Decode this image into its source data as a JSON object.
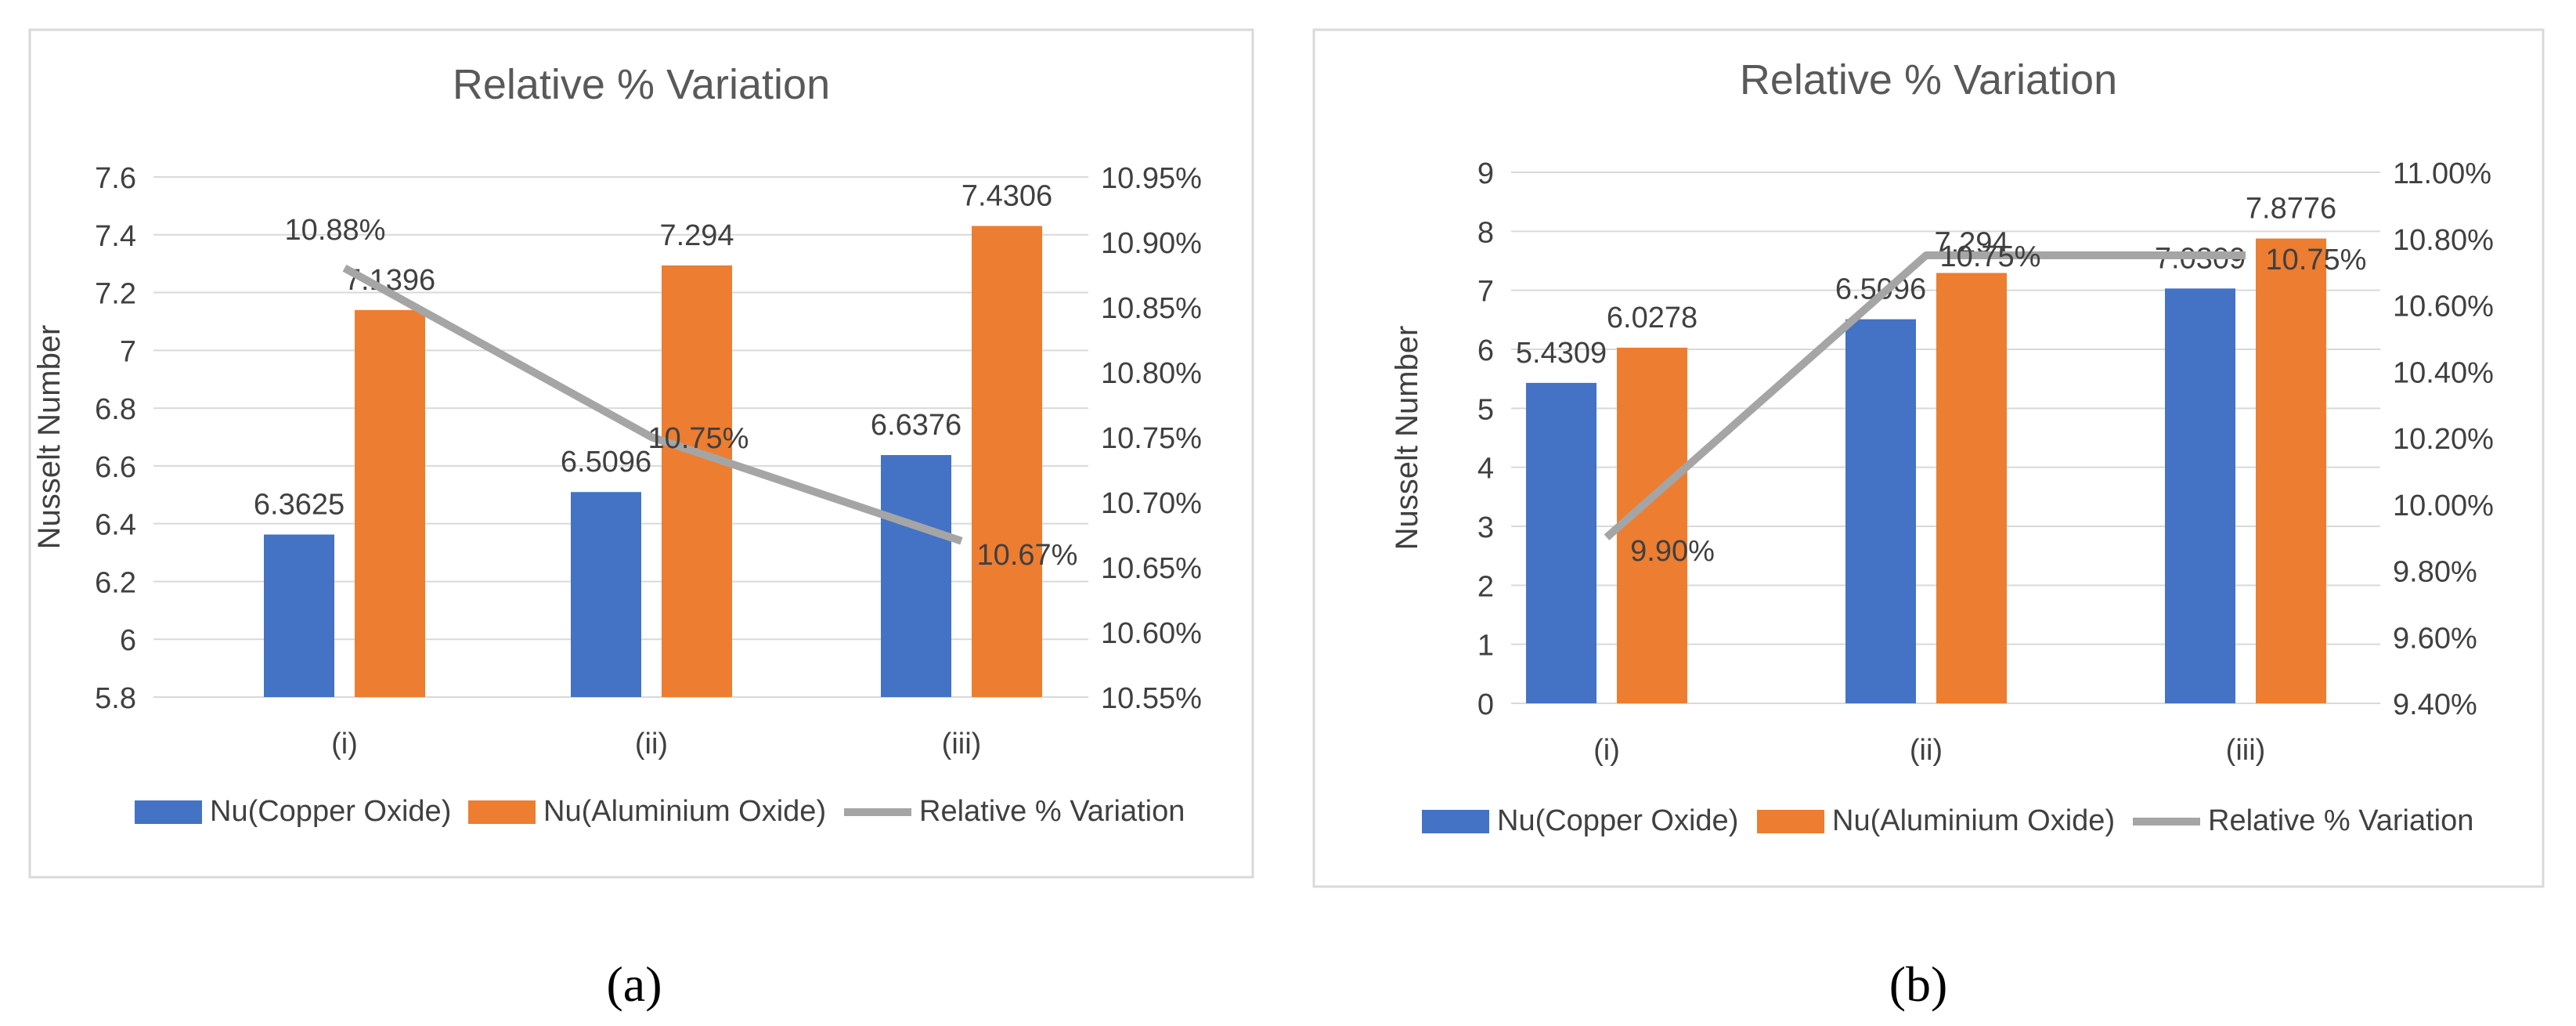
{
  "chart_data": [
    {
      "type": "bar",
      "panel": "a",
      "title": "Relative % Variation",
      "ylabel": "Nusselt Number",
      "categories": [
        "(i)",
        "(ii)",
        "(iii)"
      ],
      "series": [
        {
          "name": "Nu(Copper Oxide)",
          "values": [
            6.3625,
            6.5096,
            6.6376
          ],
          "labels": [
            "6.3625",
            "6.5096",
            "6.6376"
          ],
          "color": "#4472C4"
        },
        {
          "name": "Nu(Aluminium Oxide)",
          "values": [
            7.1396,
            7.294,
            7.4306
          ],
          "labels": [
            "7.1396",
            "7.294",
            "7.4306"
          ],
          "color": "#ED7D31"
        }
      ],
      "line_series": {
        "name": "Relative % Variation",
        "values": [
          10.88,
          10.75,
          10.67
        ],
        "labels": [
          "10.88%",
          "10.75%",
          "10.67%"
        ],
        "color": "#A5A5A5",
        "axis": "secondary"
      },
      "ylim": [
        5.8,
        7.6
      ],
      "yticks": [
        "5.8",
        "6",
        "6.2",
        "6.4",
        "6.6",
        "6.8",
        "7",
        "7.2",
        "7.4",
        "7.6"
      ],
      "y2lim": [
        10.55,
        10.95
      ],
      "y2ticks": [
        "10.55%",
        "10.60%",
        "10.65%",
        "10.70%",
        "10.75%",
        "10.80%",
        "10.85%",
        "10.90%",
        "10.95%"
      ],
      "legend": "bottom",
      "caption": "(a)"
    },
    {
      "type": "bar",
      "panel": "b",
      "title": "Relative % Variation",
      "ylabel": "Nusselt Number",
      "categories": [
        "(i)",
        "(ii)",
        "(iii)"
      ],
      "series": [
        {
          "name": "Nu(Copper Oxide)",
          "values": [
            5.4309,
            6.5096,
            7.0309
          ],
          "labels": [
            "5.4309",
            "6.5096",
            "7.0309"
          ],
          "color": "#4472C4"
        },
        {
          "name": "Nu(Aluminium Oxide)",
          "values": [
            6.0278,
            7.294,
            7.8776
          ],
          "labels": [
            "6.0278",
            "7.294",
            "7.8776"
          ],
          "color": "#ED7D31"
        }
      ],
      "line_series": {
        "name": "Relative % Variation",
        "values": [
          9.9,
          10.75,
          10.75
        ],
        "labels": [
          "9.90%",
          "10.75%",
          "10.75%"
        ],
        "color": "#A5A5A5",
        "axis": "secondary"
      },
      "ylim": [
        0,
        9
      ],
      "yticks": [
        "0",
        "1",
        "2",
        "3",
        "4",
        "5",
        "6",
        "7",
        "8",
        "9"
      ],
      "y2lim": [
        9.4,
        11.0
      ],
      "y2ticks": [
        "9.40%",
        "9.60%",
        "9.80%",
        "10.00%",
        "10.20%",
        "10.40%",
        "10.60%",
        "10.80%",
        "11.00%"
      ],
      "legend": "bottom",
      "caption": "(b)"
    }
  ]
}
